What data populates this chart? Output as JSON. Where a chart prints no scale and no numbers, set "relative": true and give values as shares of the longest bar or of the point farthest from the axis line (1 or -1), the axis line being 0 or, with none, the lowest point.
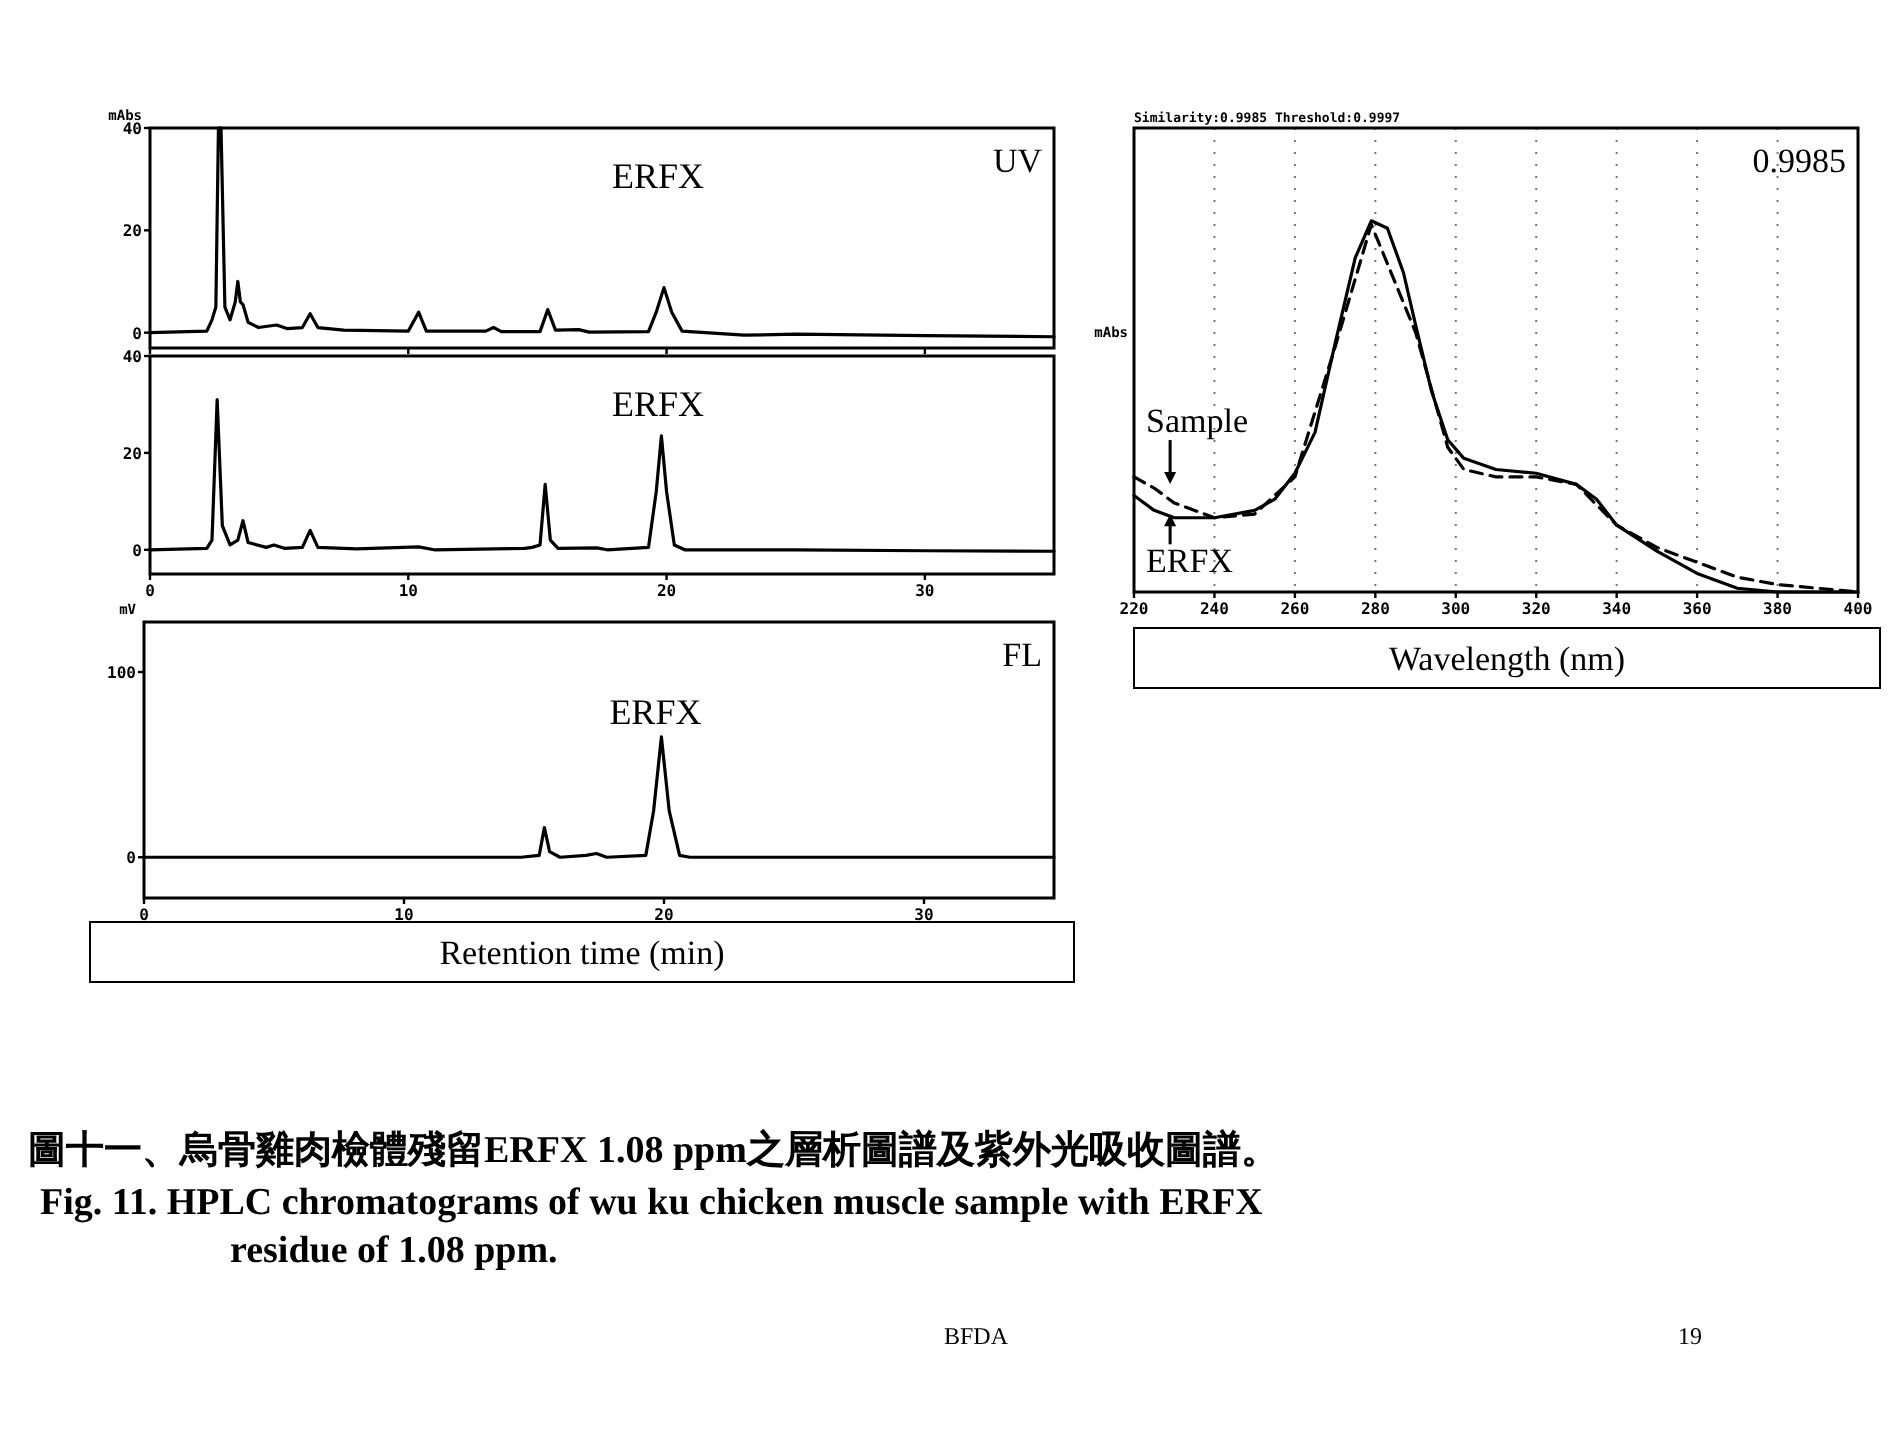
{
  "chart_data": [
    {
      "type": "line",
      "title": "圖十一、烏骨雞肉檢體殘留ERFX 1.08 ppm之層析圖譜及紫外光吸收圖譜。",
      "subtitle": "Fig. 11. HPLC chromatograms of wu ku chicken muscle sample with ERFX residue of 1.08 ppm.",
      "ylabel": "mAbs",
      "xlim": [
        0,
        35
      ],
      "ylim": [
        -3,
        40
      ],
      "xticks": [
        0,
        10,
        20,
        30
      ],
      "yticks": [
        0,
        20,
        40
      ],
      "tick_labels": "y",
      "series": [
        {
          "color": "#000000",
          "x": [
            0,
            2.2,
            2.4,
            2.55,
            2.65,
            2.75,
            2.9,
            3.1,
            3.3,
            3.4,
            3.5,
            3.6,
            3.8,
            4.2,
            4.9,
            5.3,
            5.9,
            6.2,
            6.5,
            7.5,
            10.0,
            10.4,
            10.7,
            13.0,
            13.3,
            13.6,
            15.1,
            15.4,
            15.7,
            16.6,
            17,
            19.3,
            19.6,
            19.9,
            20.2,
            20.6,
            23,
            25,
            30,
            35
          ],
          "values": [
            0,
            0.3,
            2.5,
            5,
            40,
            40,
            5,
            2.5,
            6,
            10,
            6,
            5.5,
            2,
            1,
            1.5,
            0.8,
            1,
            3.7,
            1,
            0.5,
            0.3,
            4,
            0.3,
            0.3,
            1,
            0.2,
            0.2,
            4.5,
            0.5,
            0.6,
            0.1,
            0.2,
            4,
            8.8,
            4,
            0.3,
            -0.5,
            -0.3,
            -0.6,
            -0.8
          ]
        }
      ],
      "annotations": [
        "UV",
        "BFDA",
        "19",
        "ERFX"
      ]
    },
    {
      "type": "line",
      "xlim": [
        0,
        35
      ],
      "ylim": [
        -5,
        40
      ],
      "xticks": [
        0,
        10,
        20,
        30
      ],
      "yticks": [
        0,
        20,
        40
      ],
      "series": [
        {
          "color": "#000000",
          "x": [
            0,
            2.2,
            2.4,
            2.6,
            2.8,
            3.1,
            3.4,
            3.6,
            3.8,
            4.5,
            4.8,
            5.2,
            5.9,
            6.2,
            6.5,
            8,
            10.4,
            11,
            14.5,
            14.8,
            15.1,
            15.3,
            15.5,
            15.8,
            17.3,
            17.7,
            19.3,
            19.6,
            19.8,
            20.0,
            20.3,
            20.7,
            25,
            30,
            35
          ],
          "values": [
            0,
            0.3,
            2,
            31,
            5,
            1,
            2,
            6,
            1.5,
            0.5,
            1,
            0.3,
            0.5,
            4,
            0.5,
            0.2,
            0.6,
            0,
            0.3,
            0.5,
            1,
            13.5,
            2,
            0.3,
            0.4,
            0,
            0.5,
            12,
            23.5,
            12,
            1,
            0,
            0,
            -0.2,
            -0.3
          ]
        }
      ],
      "annotations": [
        "ERFX"
      ]
    },
    {
      "type": "line",
      "xlabel": "Retention time (min)",
      "ylabel": "mV",
      "xlim": [
        0,
        35
      ],
      "ylim": [
        -22,
        127
      ],
      "xticks": [
        0,
        10,
        20,
        30
      ],
      "yticks": [
        0,
        100
      ],
      "series": [
        {
          "color": "#000000",
          "x": [
            0,
            14.5,
            15.2,
            15.4,
            15.6,
            16,
            17,
            17.4,
            17.8,
            19.3,
            19.6,
            19.9,
            20.2,
            20.6,
            21,
            35
          ],
          "values": [
            0,
            0,
            1,
            16,
            3,
            0,
            1,
            2,
            0,
            1,
            25,
            65,
            25,
            1,
            0,
            0
          ]
        }
      ],
      "annotations": [
        "FL",
        "ERFX"
      ]
    },
    {
      "type": "line",
      "relative": true,
      "xlabel": "Wavelength (nm)",
      "ylabel": "mAbs",
      "xlim": [
        220,
        400
      ],
      "xticks": [
        220,
        240,
        260,
        280,
        300,
        320,
        340,
        360,
        380,
        400
      ],
      "grid": "x",
      "series": [
        {
          "name": "Sample",
          "color": "#000000",
          "line_style": "dashed",
          "x": [
            220,
            225,
            230,
            240,
            250,
            260,
            270,
            279,
            290,
            298,
            302,
            310,
            320,
            330,
            340,
            350,
            360,
            370,
            380,
            390,
            400
          ],
          "values": [
            0.31,
            0.28,
            0.24,
            0.2,
            0.21,
            0.31,
            0.66,
            0.99,
            0.7,
            0.39,
            0.33,
            0.31,
            0.31,
            0.29,
            0.18,
            0.12,
            0.08,
            0.04,
            0.02,
            0.01,
            0
          ]
        },
        {
          "name": "ERFX",
          "color": "#000000",
          "line_style": "solid",
          "x": [
            220,
            225,
            230,
            240,
            250,
            255,
            260,
            265,
            270,
            275,
            279,
            283,
            287,
            290,
            294,
            298,
            302,
            310,
            320,
            330,
            335,
            340,
            350,
            360,
            370,
            380,
            390,
            400
          ],
          "values": [
            0.26,
            0.22,
            0.2,
            0.2,
            0.22,
            0.25,
            0.32,
            0.43,
            0.67,
            0.9,
            1,
            0.98,
            0.86,
            0.72,
            0.54,
            0.41,
            0.36,
            0.33,
            0.32,
            0.29,
            0.25,
            0.18,
            0.11,
            0.05,
            0.01,
            0,
            0,
            0
          ]
        }
      ],
      "annotations": [
        "Similarity:0.9985   Threshold:0.9997",
        "0.9985"
      ]
    }
  ]
}
